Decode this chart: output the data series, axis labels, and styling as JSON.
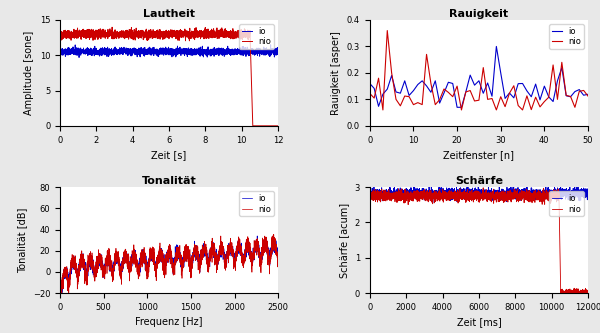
{
  "fig_width": 6.0,
  "fig_height": 3.33,
  "dpi": 100,
  "bg_color": "#e8e8e8",
  "plot_bg_color": "#ffffff",
  "color_io": "#0000cc",
  "color_nio": "#cc0000",
  "legend_labels": [
    "io",
    "nio"
  ],
  "plots": [
    {
      "title": "Lautheit",
      "xlabel": "Zeit [s]",
      "ylabel": "Amplitude [sone]",
      "xlim": [
        0,
        12
      ],
      "ylim": [
        0,
        15
      ],
      "xticks": [
        0,
        2,
        4,
        6,
        8,
        10,
        12
      ],
      "yticks": [
        0,
        5,
        10,
        15
      ]
    },
    {
      "title": "Rauigkeit",
      "xlabel": "Zeitfenster [n]",
      "ylabel": "Rauigkeit [asper]",
      "xlim": [
        0,
        50
      ],
      "ylim": [
        0,
        0.4
      ],
      "xticks": [
        0,
        10,
        20,
        30,
        40,
        50
      ],
      "yticks": [
        0,
        0.1,
        0.2,
        0.3,
        0.4
      ]
    },
    {
      "title": "Tonalität",
      "xlabel": "Frequenz [Hz]",
      "ylabel": "Tonalität [dB]",
      "xlim": [
        0,
        2500
      ],
      "ylim": [
        -20,
        80
      ],
      "xticks": [
        0,
        500,
        1000,
        1500,
        2000,
        2500
      ],
      "yticks": [
        -20,
        0,
        20,
        40,
        60,
        80
      ]
    },
    {
      "title": "Schärfe",
      "xlabel": "Zeit [ms]",
      "ylabel": "Schärfe [acum]",
      "xlim": [
        0,
        12000
      ],
      "ylim": [
        0,
        3
      ],
      "xticks": [
        0,
        2000,
        4000,
        6000,
        8000,
        10000,
        12000
      ],
      "yticks": [
        0,
        1,
        2,
        3
      ]
    }
  ]
}
